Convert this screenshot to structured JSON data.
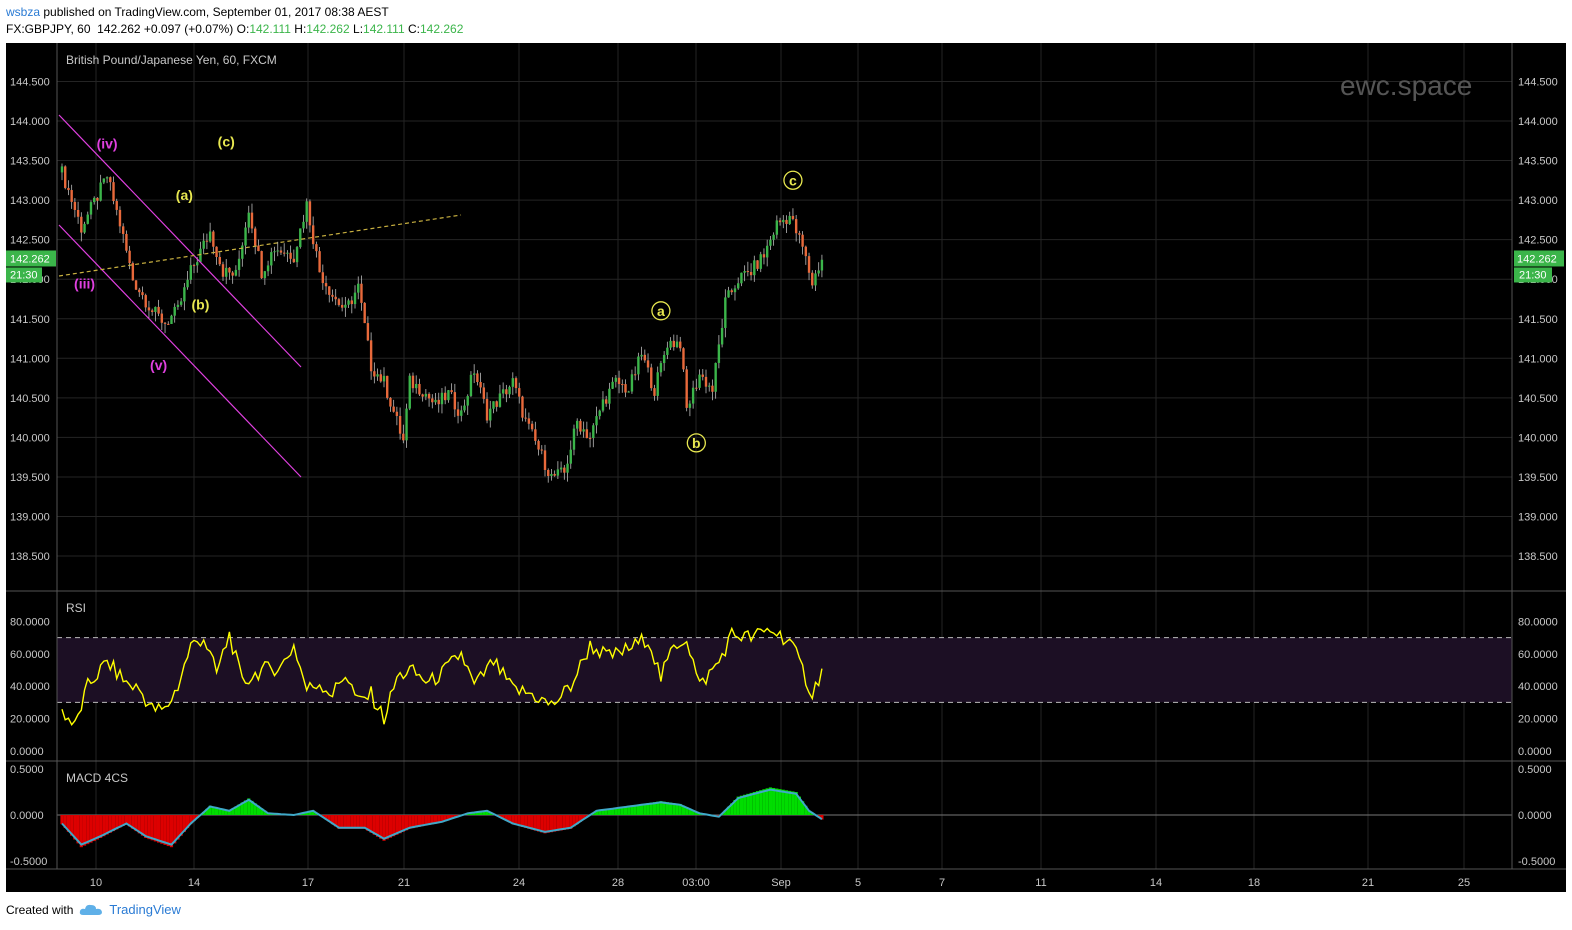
{
  "header": {
    "user": "wsbza",
    "published_text": "published on TradingView.com, September 01, 2017 08:38 AEST",
    "symbol": "FX:GBPJPY, 60",
    "last": "142.262",
    "change": "+0.097 (+0.07%)",
    "o_label": "O:",
    "o_value": "142.111",
    "h_label": "H:",
    "h_value": "142.262",
    "l_label": "L:",
    "l_value": "142.111",
    "c_label": "C:",
    "c_value": "142.262"
  },
  "watermark": "ewc.space",
  "footer": {
    "created_with": "Created with",
    "brand": "TradingView"
  },
  "colors": {
    "background": "#000000",
    "up_candle": "#3bb54a",
    "down_candle": "#e8693b",
    "rsi_line": "#ffff00",
    "macd_line": "#3fa9c9",
    "macd_hist_up": "#00dd00",
    "macd_hist_down": "#dd0000",
    "wave_magenta": "#e040e0",
    "wave_yellow": "#e8e850",
    "price_badge": "#3bb54a"
  },
  "chart_data": [
    {
      "type": "candlestick",
      "title": "British Pound/Japanese Yen, 60, FXCM",
      "ylim": [
        138.0,
        145.0
      ],
      "y_ticks": [
        "144.500",
        "144.000",
        "143.500",
        "143.000",
        "142.500",
        "142.000",
        "141.500",
        "141.000",
        "140.500",
        "140.000",
        "139.500",
        "139.000",
        "138.500"
      ],
      "x_ticks": [
        "10",
        "14",
        "17",
        "21",
        "24",
        "28",
        "03:00",
        "Sep",
        "5",
        "7",
        "11",
        "14",
        "18",
        "21",
        "25"
      ],
      "price_anchors": [
        {
          "t": 0,
          "p": 143.35
        },
        {
          "t": 6,
          "p": 142.65
        },
        {
          "t": 11,
          "p": 143.05
        },
        {
          "t": 14,
          "p": 143.3
        },
        {
          "t": 18,
          "p": 142.7
        },
        {
          "t": 22,
          "p": 142.0
        },
        {
          "t": 28,
          "p": 141.6
        },
        {
          "t": 32,
          "p": 141.45
        },
        {
          "t": 36,
          "p": 141.6
        },
        {
          "t": 40,
          "p": 142.1
        },
        {
          "t": 46,
          "p": 142.6
        },
        {
          "t": 50,
          "p": 142.1
        },
        {
          "t": 54,
          "p": 142.05
        },
        {
          "t": 58,
          "p": 142.9
        },
        {
          "t": 62,
          "p": 142.1
        },
        {
          "t": 66,
          "p": 142.4
        },
        {
          "t": 72,
          "p": 142.3
        },
        {
          "t": 76,
          "p": 142.95
        },
        {
          "t": 80,
          "p": 142.1
        },
        {
          "t": 84,
          "p": 141.8
        },
        {
          "t": 88,
          "p": 141.6
        },
        {
          "t": 92,
          "p": 141.9
        },
        {
          "t": 96,
          "p": 140.9
        },
        {
          "t": 100,
          "p": 140.7
        },
        {
          "t": 104,
          "p": 140.2
        },
        {
          "t": 106,
          "p": 139.95
        },
        {
          "t": 108,
          "p": 140.7
        },
        {
          "t": 112,
          "p": 140.6
        },
        {
          "t": 116,
          "p": 140.4
        },
        {
          "t": 120,
          "p": 140.55
        },
        {
          "t": 124,
          "p": 140.3
        },
        {
          "t": 128,
          "p": 140.85
        },
        {
          "t": 132,
          "p": 140.3
        },
        {
          "t": 136,
          "p": 140.5
        },
        {
          "t": 140,
          "p": 140.7
        },
        {
          "t": 144,
          "p": 140.2
        },
        {
          "t": 148,
          "p": 139.85
        },
        {
          "t": 152,
          "p": 139.5
        },
        {
          "t": 156,
          "p": 139.55
        },
        {
          "t": 160,
          "p": 140.2
        },
        {
          "t": 164,
          "p": 140.0
        },
        {
          "t": 168,
          "p": 140.45
        },
        {
          "t": 172,
          "p": 140.7
        },
        {
          "t": 176,
          "p": 140.6
        },
        {
          "t": 180,
          "p": 141.05
        },
        {
          "t": 184,
          "p": 140.6
        },
        {
          "t": 188,
          "p": 141.2
        },
        {
          "t": 192,
          "p": 141.2
        },
        {
          "t": 194,
          "p": 140.35
        },
        {
          "t": 198,
          "p": 140.8
        },
        {
          "t": 202,
          "p": 140.6
        },
        {
          "t": 206,
          "p": 141.7
        },
        {
          "t": 210,
          "p": 142.0
        },
        {
          "t": 214,
          "p": 142.1
        },
        {
          "t": 218,
          "p": 142.3
        },
        {
          "t": 222,
          "p": 142.7
        },
        {
          "t": 226,
          "p": 142.8
        },
        {
          "t": 230,
          "p": 142.4
        },
        {
          "t": 233,
          "p": 141.95
        },
        {
          "t": 236,
          "p": 142.262
        }
      ],
      "wave_labels": [
        {
          "text": "(iv)",
          "t": 14,
          "p": 143.65,
          "color": "magenta"
        },
        {
          "text": "(iii)",
          "t": 7,
          "p": 141.88,
          "color": "magenta"
        },
        {
          "text": "(v)",
          "t": 30,
          "p": 140.85,
          "color": "magenta"
        },
        {
          "text": "(a)",
          "t": 38,
          "p": 143.0,
          "color": "yellow"
        },
        {
          "text": "(b)",
          "t": 43,
          "p": 141.62,
          "color": "yellow"
        },
        {
          "text": "(c)",
          "t": 51,
          "p": 143.68,
          "color": "yellow"
        },
        {
          "text": "a",
          "t": 186,
          "p": 141.55,
          "color": "yellow",
          "circled": true
        },
        {
          "text": "b",
          "t": 197,
          "p": 139.88,
          "color": "yellow",
          "circled": true
        },
        {
          "text": "c",
          "t": 227,
          "p": 143.2,
          "color": "yellow",
          "circled": true
        }
      ],
      "last_price": "142.262",
      "countdown": "21:30"
    },
    {
      "type": "line",
      "title": "RSI",
      "ylim": [
        0,
        80
      ],
      "y_ticks": [
        "80.0000",
        "60.0000",
        "40.0000",
        "20.0000",
        "0.0000"
      ],
      "levels": [
        70,
        30
      ],
      "rsi_anchors": [
        {
          "t": 0,
          "v": 25
        },
        {
          "t": 4,
          "v": 15
        },
        {
          "t": 8,
          "v": 40
        },
        {
          "t": 14,
          "v": 55
        },
        {
          "t": 20,
          "v": 42
        },
        {
          "t": 24,
          "v": 38
        },
        {
          "t": 28,
          "v": 26
        },
        {
          "t": 32,
          "v": 25
        },
        {
          "t": 36,
          "v": 40
        },
        {
          "t": 40,
          "v": 65
        },
        {
          "t": 44,
          "v": 70
        },
        {
          "t": 48,
          "v": 48
        },
        {
          "t": 52,
          "v": 72
        },
        {
          "t": 56,
          "v": 42
        },
        {
          "t": 62,
          "v": 50
        },
        {
          "t": 68,
          "v": 52
        },
        {
          "t": 72,
          "v": 65
        },
        {
          "t": 76,
          "v": 38
        },
        {
          "t": 80,
          "v": 42
        },
        {
          "t": 84,
          "v": 35
        },
        {
          "t": 88,
          "v": 48
        },
        {
          "t": 92,
          "v": 30
        },
        {
          "t": 96,
          "v": 35
        },
        {
          "t": 100,
          "v": 20
        },
        {
          "t": 104,
          "v": 45
        },
        {
          "t": 108,
          "v": 50
        },
        {
          "t": 114,
          "v": 42
        },
        {
          "t": 118,
          "v": 48
        },
        {
          "t": 124,
          "v": 60
        },
        {
          "t": 128,
          "v": 40
        },
        {
          "t": 134,
          "v": 55
        },
        {
          "t": 140,
          "v": 38
        },
        {
          "t": 146,
          "v": 35
        },
        {
          "t": 152,
          "v": 28
        },
        {
          "t": 158,
          "v": 40
        },
        {
          "t": 164,
          "v": 65
        },
        {
          "t": 170,
          "v": 58
        },
        {
          "t": 176,
          "v": 63
        },
        {
          "t": 182,
          "v": 70
        },
        {
          "t": 186,
          "v": 45
        },
        {
          "t": 190,
          "v": 65
        },
        {
          "t": 194,
          "v": 70
        },
        {
          "t": 198,
          "v": 40
        },
        {
          "t": 204,
          "v": 55
        },
        {
          "t": 208,
          "v": 72
        },
        {
          "t": 214,
          "v": 70
        },
        {
          "t": 220,
          "v": 75
        },
        {
          "t": 226,
          "v": 68
        },
        {
          "t": 230,
          "v": 50
        },
        {
          "t": 233,
          "v": 35
        },
        {
          "t": 236,
          "v": 50
        }
      ]
    },
    {
      "type": "histogram",
      "title": "MACD 4CS",
      "ylim": [
        -0.6,
        0.6
      ],
      "y_ticks": [
        "0.5000",
        "0.0000",
        "-0.5000"
      ],
      "macd_anchors": [
        {
          "t": 0,
          "v": -0.1
        },
        {
          "t": 6,
          "v": -0.35
        },
        {
          "t": 12,
          "v": -0.25
        },
        {
          "t": 20,
          "v": -0.1
        },
        {
          "t": 26,
          "v": -0.25
        },
        {
          "t": 34,
          "v": -0.35
        },
        {
          "t": 40,
          "v": -0.1
        },
        {
          "t": 46,
          "v": 0.1
        },
        {
          "t": 52,
          "v": 0.05
        },
        {
          "t": 58,
          "v": 0.18
        },
        {
          "t": 64,
          "v": 0.02
        },
        {
          "t": 72,
          "v": 0.0
        },
        {
          "t": 78,
          "v": 0.05
        },
        {
          "t": 86,
          "v": -0.15
        },
        {
          "t": 94,
          "v": -0.15
        },
        {
          "t": 100,
          "v": -0.28
        },
        {
          "t": 108,
          "v": -0.15
        },
        {
          "t": 118,
          "v": -0.08
        },
        {
          "t": 126,
          "v": 0.02
        },
        {
          "t": 132,
          "v": 0.05
        },
        {
          "t": 140,
          "v": -0.1
        },
        {
          "t": 150,
          "v": -0.2
        },
        {
          "t": 158,
          "v": -0.15
        },
        {
          "t": 166,
          "v": 0.05
        },
        {
          "t": 176,
          "v": 0.1
        },
        {
          "t": 186,
          "v": 0.15
        },
        {
          "t": 192,
          "v": 0.12
        },
        {
          "t": 198,
          "v": 0.02
        },
        {
          "t": 204,
          "v": -0.02
        },
        {
          "t": 210,
          "v": 0.2
        },
        {
          "t": 220,
          "v": 0.3
        },
        {
          "t": 228,
          "v": 0.25
        },
        {
          "t": 232,
          "v": 0.05
        },
        {
          "t": 236,
          "v": -0.05
        }
      ]
    }
  ]
}
